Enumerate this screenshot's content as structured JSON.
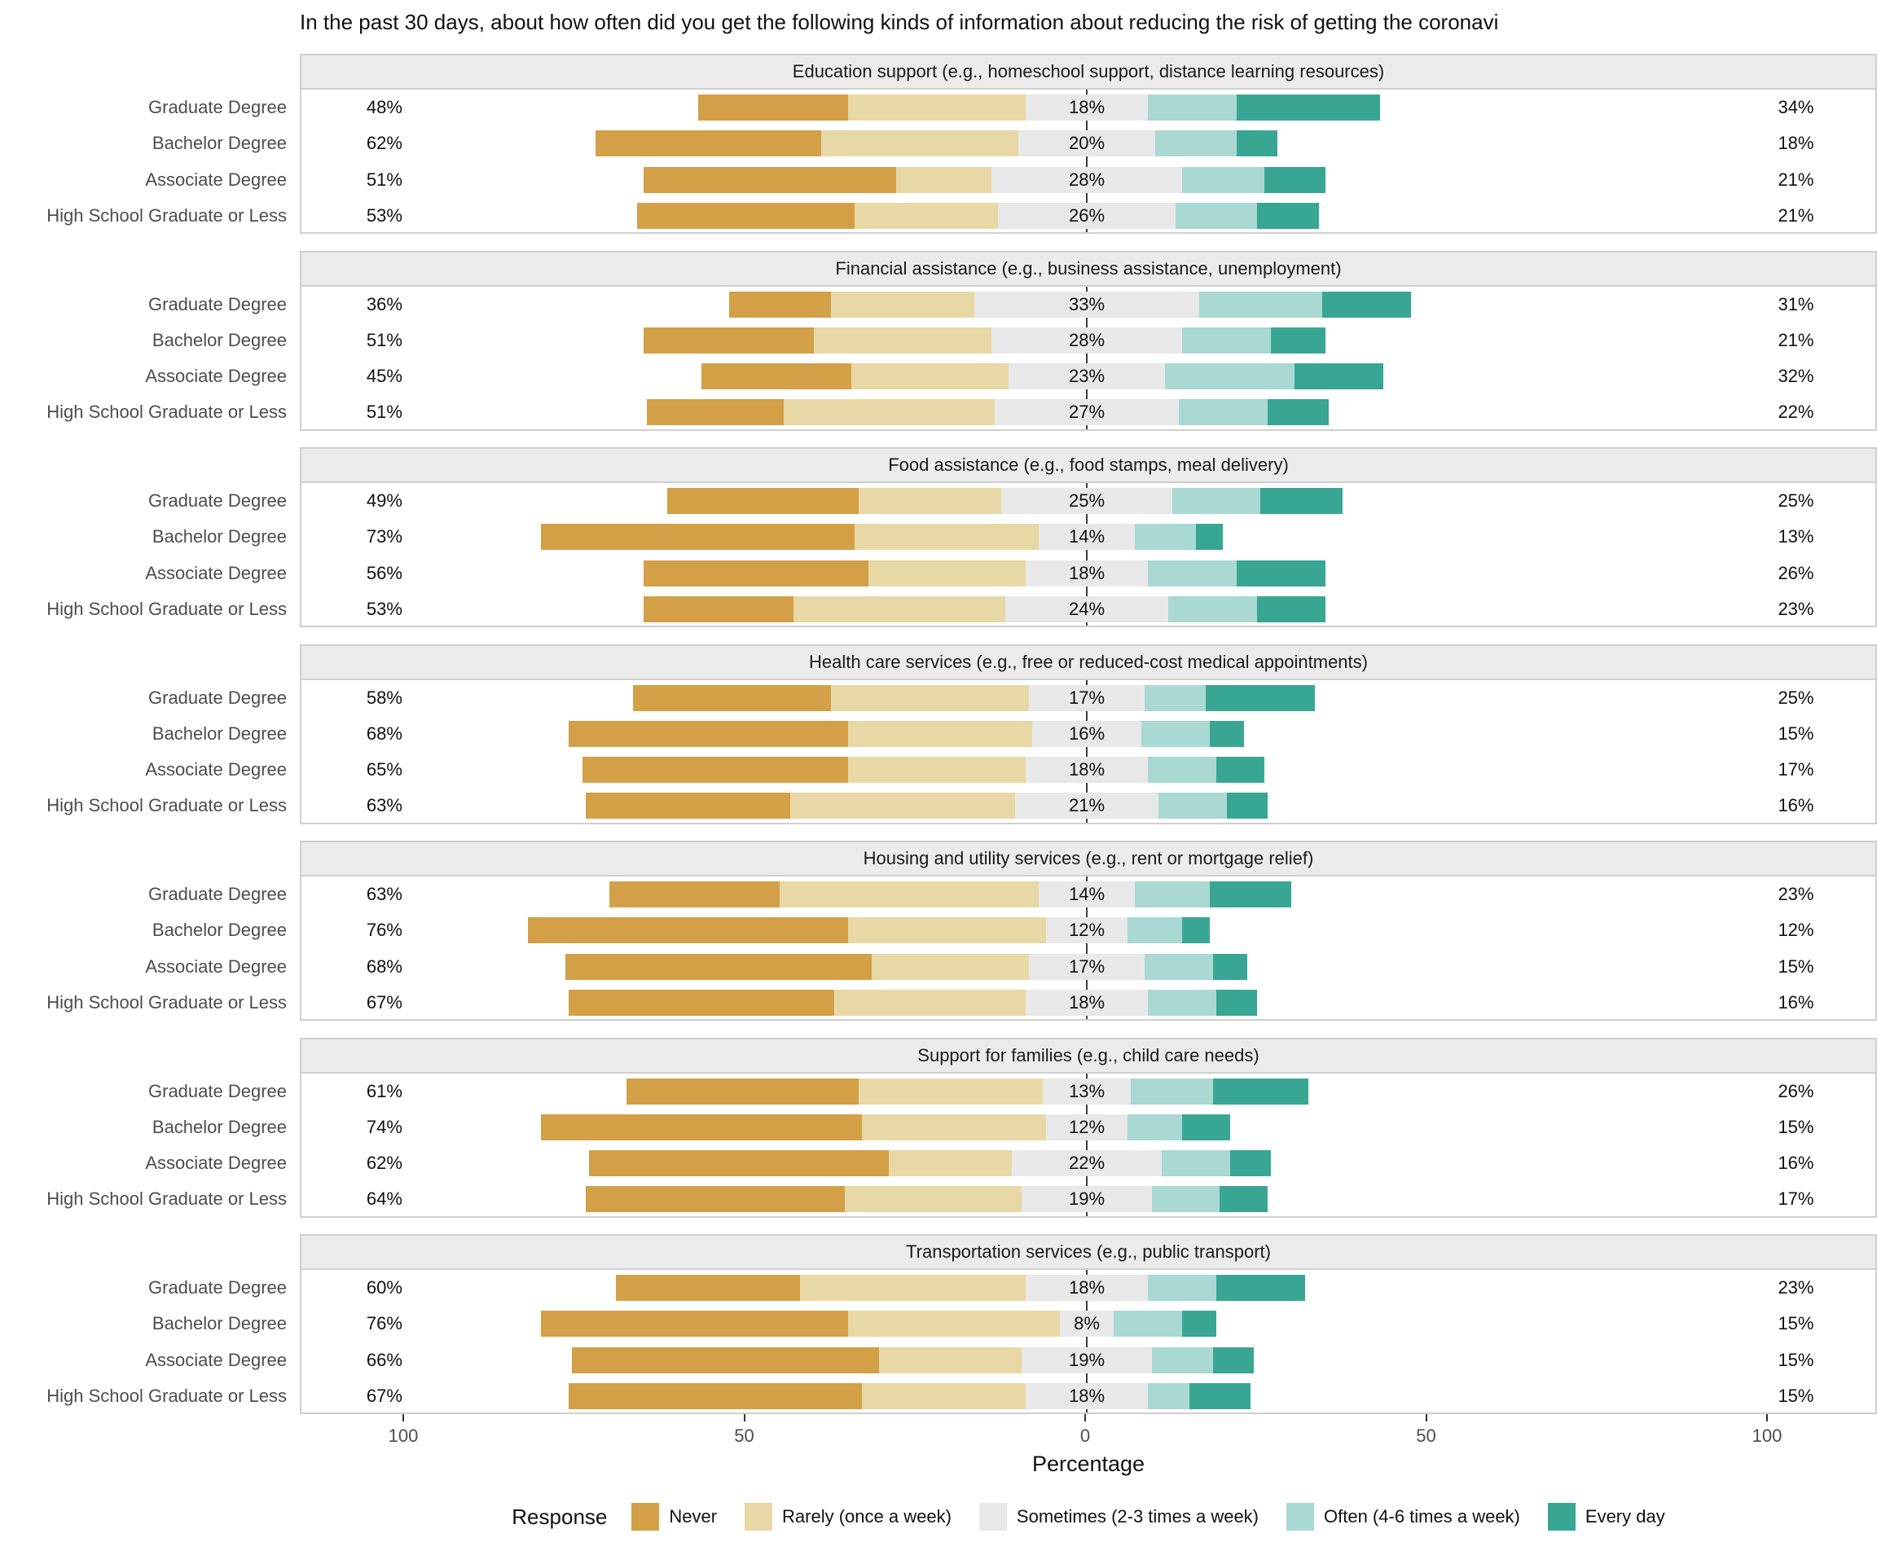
{
  "chart_data": {
    "type": "bar",
    "variant": "diverging_stacked_likert",
    "title": "In the past 30 days, about how often did you get the following kinds of information about reducing the risk of getting the coronavi",
    "x_axis": {
      "label": "Percentage",
      "ticks": [
        {
          "value": -100,
          "label": "100"
        },
        {
          "value": -50,
          "label": "50"
        },
        {
          "value": 0,
          "label": "0"
        },
        {
          "value": 50,
          "label": "50"
        },
        {
          "value": 100,
          "label": "100"
        }
      ]
    },
    "legend": {
      "title": "Response",
      "items": [
        {
          "key": "never",
          "label": "Never"
        },
        {
          "key": "rarely",
          "label": "Rarely (once a week)"
        },
        {
          "key": "sometimes",
          "label": "Sometimes (2-3 times a week)"
        },
        {
          "key": "often",
          "label": "Often (4-6 times a week)"
        },
        {
          "key": "every_day",
          "label": "Every day"
        }
      ]
    },
    "colors": {
      "never": "#D3A048",
      "rarely": "#E8D8A5",
      "sometimes": "#E8E8E8",
      "often": "#A9D9D2",
      "every_day": "#39A693"
    },
    "segment_order": [
      "never",
      "rarely",
      "sometimes",
      "often",
      "every_day"
    ],
    "facets": [
      {
        "label": "Education support (e.g., homeschool support, distance learning resources)",
        "rows": [
          {
            "category": "Graduate Degree",
            "left_label": "48%",
            "mid_label": "18%",
            "right_label": "34%",
            "values": {
              "never": 22,
              "rarely": 26,
              "sometimes": 18,
              "often": 13,
              "every_day": 21
            }
          },
          {
            "category": "Bachelor Degree",
            "left_label": "62%",
            "mid_label": "20%",
            "right_label": "18%",
            "values": {
              "never": 33,
              "rarely": 29,
              "sometimes": 20,
              "often": 12,
              "every_day": 6
            }
          },
          {
            "category": "Associate Degree",
            "left_label": "51%",
            "mid_label": "28%",
            "right_label": "21%",
            "values": {
              "never": 37,
              "rarely": 14,
              "sometimes": 28,
              "often": 12,
              "every_day": 9
            }
          },
          {
            "category": "High School Graduate or Less",
            "left_label": "53%",
            "mid_label": "26%",
            "right_label": "21%",
            "values": {
              "never": 32,
              "rarely": 21,
              "sometimes": 26,
              "often": 12,
              "every_day": 9
            }
          }
        ]
      },
      {
        "label": "Financial assistance (e.g., business assistance, unemployment)",
        "rows": [
          {
            "category": "Graduate Degree",
            "left_label": "36%",
            "mid_label": "33%",
            "right_label": "31%",
            "values": {
              "never": 15,
              "rarely": 21,
              "sometimes": 33,
              "often": 18,
              "every_day": 13
            }
          },
          {
            "category": "Bachelor Degree",
            "left_label": "51%",
            "mid_label": "28%",
            "right_label": "21%",
            "values": {
              "never": 25,
              "rarely": 26,
              "sometimes": 28,
              "often": 13,
              "every_day": 8
            }
          },
          {
            "category": "Associate Degree",
            "left_label": "45%",
            "mid_label": "23%",
            "right_label": "32%",
            "values": {
              "never": 22,
              "rarely": 23,
              "sometimes": 23,
              "often": 19,
              "every_day": 13
            }
          },
          {
            "category": "High School Graduate or Less",
            "left_label": "51%",
            "mid_label": "27%",
            "right_label": "22%",
            "values": {
              "never": 20,
              "rarely": 31,
              "sometimes": 27,
              "often": 13,
              "every_day": 9
            }
          }
        ]
      },
      {
        "label": "Food assistance (e.g., food stamps, meal delivery)",
        "rows": [
          {
            "category": "Graduate Degree",
            "left_label": "49%",
            "mid_label": "25%",
            "right_label": "25%",
            "values": {
              "never": 28,
              "rarely": 21,
              "sometimes": 25,
              "often": 13,
              "every_day": 12
            }
          },
          {
            "category": "Bachelor Degree",
            "left_label": "73%",
            "mid_label": "14%",
            "right_label": "13%",
            "values": {
              "never": 46,
              "rarely": 27,
              "sometimes": 14,
              "often": 9,
              "every_day": 4
            }
          },
          {
            "category": "Associate Degree",
            "left_label": "56%",
            "mid_label": "18%",
            "right_label": "26%",
            "values": {
              "never": 33,
              "rarely": 23,
              "sometimes": 18,
              "often": 13,
              "every_day": 13
            }
          },
          {
            "category": "High School Graduate or Less",
            "left_label": "53%",
            "mid_label": "24%",
            "right_label": "23%",
            "values": {
              "never": 22,
              "rarely": 31,
              "sometimes": 24,
              "often": 13,
              "every_day": 10
            }
          }
        ]
      },
      {
        "label": "Health care services (e.g., free or reduced-cost medical appointments)",
        "rows": [
          {
            "category": "Graduate Degree",
            "left_label": "58%",
            "mid_label": "17%",
            "right_label": "25%",
            "values": {
              "never": 29,
              "rarely": 29,
              "sometimes": 17,
              "often": 9,
              "every_day": 16
            }
          },
          {
            "category": "Bachelor Degree",
            "left_label": "68%",
            "mid_label": "16%",
            "right_label": "15%",
            "values": {
              "never": 41,
              "rarely": 27,
              "sometimes": 16,
              "often": 10,
              "every_day": 5
            }
          },
          {
            "category": "Associate Degree",
            "left_label": "65%",
            "mid_label": "18%",
            "right_label": "17%",
            "values": {
              "never": 39,
              "rarely": 26,
              "sometimes": 18,
              "often": 10,
              "every_day": 7
            }
          },
          {
            "category": "High School Graduate or Less",
            "left_label": "63%",
            "mid_label": "21%",
            "right_label": "16%",
            "values": {
              "never": 30,
              "rarely": 33,
              "sometimes": 21,
              "often": 10,
              "every_day": 6
            }
          }
        ]
      },
      {
        "label": "Housing and utility services (e.g., rent or mortgage relief)",
        "rows": [
          {
            "category": "Graduate Degree",
            "left_label": "63%",
            "mid_label": "14%",
            "right_label": "23%",
            "values": {
              "never": 25,
              "rarely": 38,
              "sometimes": 14,
              "often": 11,
              "every_day": 12
            }
          },
          {
            "category": "Bachelor Degree",
            "left_label": "76%",
            "mid_label": "12%",
            "right_label": "12%",
            "values": {
              "never": 47,
              "rarely": 29,
              "sometimes": 12,
              "often": 8,
              "every_day": 4
            }
          },
          {
            "category": "Associate Degree",
            "left_label": "68%",
            "mid_label": "17%",
            "right_label": "15%",
            "values": {
              "never": 45,
              "rarely": 23,
              "sometimes": 17,
              "often": 10,
              "every_day": 5
            }
          },
          {
            "category": "High School Graduate or Less",
            "left_label": "67%",
            "mid_label": "18%",
            "right_label": "16%",
            "values": {
              "never": 39,
              "rarely": 28,
              "sometimes": 18,
              "often": 10,
              "every_day": 6
            }
          }
        ]
      },
      {
        "label": "Support for families (e.g., child care needs)",
        "rows": [
          {
            "category": "Graduate Degree",
            "left_label": "61%",
            "mid_label": "13%",
            "right_label": "26%",
            "values": {
              "never": 34,
              "rarely": 27,
              "sometimes": 13,
              "often": 12,
              "every_day": 14
            }
          },
          {
            "category": "Bachelor Degree",
            "left_label": "74%",
            "mid_label": "12%",
            "right_label": "15%",
            "values": {
              "never": 47,
              "rarely": 27,
              "sometimes": 12,
              "often": 8,
              "every_day": 7
            }
          },
          {
            "category": "Associate Degree",
            "left_label": "62%",
            "mid_label": "22%",
            "right_label": "16%",
            "values": {
              "never": 44,
              "rarely": 18,
              "sometimes": 22,
              "often": 10,
              "every_day": 6
            }
          },
          {
            "category": "High School Graduate or Less",
            "left_label": "64%",
            "mid_label": "19%",
            "right_label": "17%",
            "values": {
              "never": 38,
              "rarely": 26,
              "sometimes": 19,
              "often": 10,
              "every_day": 7
            }
          }
        ]
      },
      {
        "label": "Transportation services (e.g., public transport)",
        "rows": [
          {
            "category": "Graduate Degree",
            "left_label": "60%",
            "mid_label": "18%",
            "right_label": "23%",
            "values": {
              "never": 27,
              "rarely": 33,
              "sometimes": 18,
              "often": 10,
              "every_day": 13
            }
          },
          {
            "category": "Bachelor Degree",
            "left_label": "76%",
            "mid_label": "8%",
            "right_label": "15%",
            "values": {
              "never": 45,
              "rarely": 31,
              "sometimes": 8,
              "often": 10,
              "every_day": 5
            }
          },
          {
            "category": "Associate Degree",
            "left_label": "66%",
            "mid_label": "19%",
            "right_label": "15%",
            "values": {
              "never": 45,
              "rarely": 21,
              "sometimes": 19,
              "often": 9,
              "every_day": 6
            }
          },
          {
            "category": "High School Graduate or Less",
            "left_label": "67%",
            "mid_label": "18%",
            "right_label": "15%",
            "values": {
              "never": 43,
              "rarely": 24,
              "sometimes": 18,
              "often": 6,
              "every_day": 9
            }
          }
        ]
      }
    ]
  }
}
